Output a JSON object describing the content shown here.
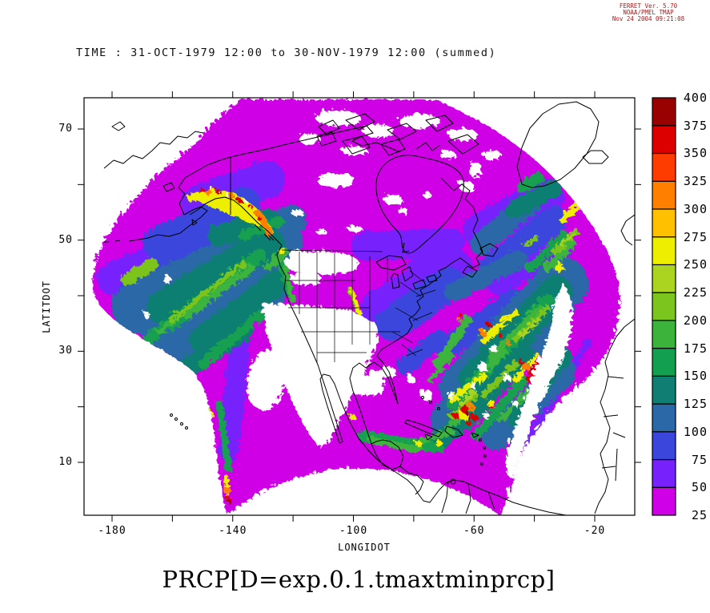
{
  "stamp": {
    "line1": "FERRET Ver. 5.70",
    "line2": "NOAA/PMEL TMAP",
    "line3": "Nov 24 2004 09:21:08",
    "color": "#a02020"
  },
  "header": {
    "time_title": "TIME : 31-OCT-1979 12:00 to 30-NOV-1979 12:00 (summed)"
  },
  "footer": {
    "variable_title": "PRCP[D=exp.0.1.tmaxtminprcp]"
  },
  "chart_data": {
    "type": "heatmap",
    "title": "TIME : 31-OCT-1979 12:00 to 30-NOV-1979 12:00 (summed)",
    "variable": "PRCP[D=exp.0.1.tmaxtminprcp]",
    "xlabel": "LONGIDOT",
    "ylabel": "LATITDOT",
    "x_ticks_labeled": [
      -180,
      -140,
      -100,
      -60,
      -20
    ],
    "x_ticks_minor": [
      -160,
      -120,
      -80,
      -40
    ],
    "y_ticks_labeled": [
      70,
      50,
      30,
      10
    ],
    "y_ticks_minor": [
      60,
      40,
      20
    ],
    "xlim": [
      -189,
      -7
    ],
    "ylim": [
      0.5,
      75.8
    ],
    "grid": false,
    "legend_position": "right-colorbar",
    "colorbar": {
      "min": 25,
      "max": 400,
      "interval": 25,
      "tick_labels": [
        400,
        375,
        350,
        325,
        300,
        275,
        250,
        225,
        200,
        175,
        150,
        125,
        100,
        75,
        50,
        25
      ],
      "colors_low_to_high": [
        "#CF00E6",
        "#7722FC",
        "#3A46DC",
        "#2A68A8",
        "#107E72",
        "#12A050",
        "#3CB43C",
        "#7CC41E",
        "#AAD420",
        "#EEEE00",
        "#FFC000",
        "#FF8000",
        "#FF3C00",
        "#DD0000",
        "#990000"
      ]
    },
    "field_summary": [
      "Monthly summed precipitation shown only inside a curved (Lambert model grid) fan-shaped domain",
      "Values below 25 are blank (white): US Southwest, eastern subtropical Pacific, central Canada / Arctic islands band",
      "Low values 25-75 (magenta/violet) dominate Canada and the Arctic rim of the domain",
      "100-200 (blue/teal/green) over Gulf of Alaska, NE Pacific and western North Atlantic storm tracks",
      "Maxima above 300-400 (orange/red/dark red) along the Alaska panhandle coast, off the US east coast / Caribbean, and at the southern domain tip near the east Pacific ITCZ"
    ]
  }
}
